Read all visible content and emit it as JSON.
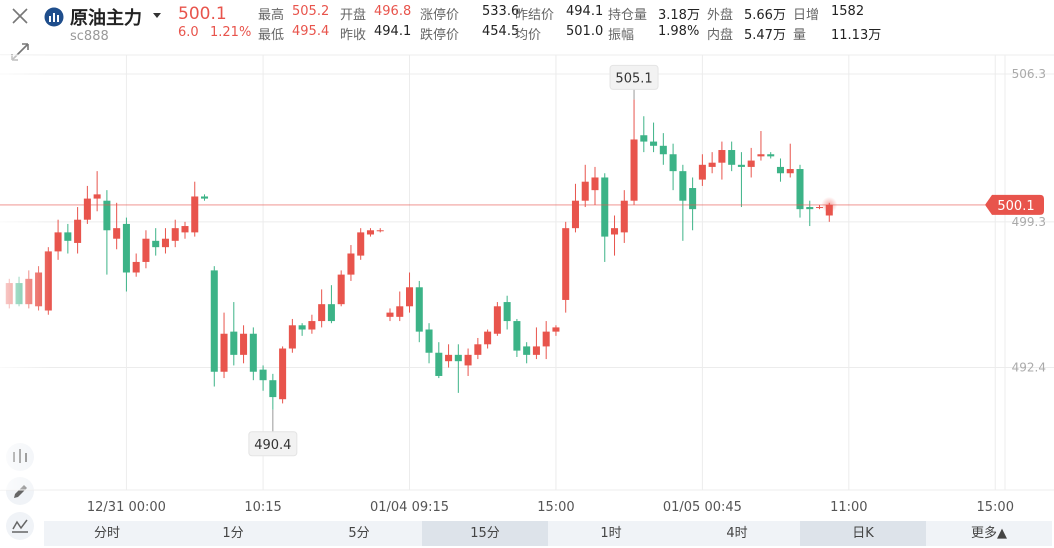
{
  "header": {
    "name": "原油主力",
    "code": "sc888",
    "price": "500.1",
    "change": "6.0",
    "change_pct": "1.21%",
    "stats": [
      [
        {
          "label": "最高",
          "value": "505.2"
        },
        {
          "label": "开盘",
          "value": "496.8"
        },
        {
          "label": "涨停价",
          "value": "533.6"
        },
        {
          "label": "昨结价",
          "value": "494.1"
        },
        {
          "label": "持仓量",
          "value": "3.18万"
        },
        {
          "label": "外盘",
          "value": "5.66万"
        },
        {
          "label": "日增",
          "value": "1582"
        }
      ],
      [
        {
          "label": "最低",
          "value": "495.4"
        },
        {
          "label": "昨收",
          "value": "494.1"
        },
        {
          "label": "跌停价",
          "value": "454.5"
        },
        {
          "label": "均价",
          "value": "501.0"
        },
        {
          "label": "振幅",
          "value": "1.98%"
        },
        {
          "label": "内盘",
          "value": "5.47万"
        },
        {
          "label": "量",
          "value": "11.13万"
        }
      ]
    ]
  },
  "chart_data": {
    "type": "candlestick",
    "up_color": "#e8544c",
    "down_color": "#3cb387",
    "open": [
      495.4,
      496.4,
      495.4,
      495.3,
      495.1,
      497.9,
      498.8,
      498.3,
      499.4,
      500.4,
      500.3,
      498.5,
      499.2,
      496.9,
      497.4,
      498.4,
      498.1,
      498.4,
      498.8,
      498.8,
      500.5,
      497.0,
      492.2,
      494.1,
      493.0,
      494.0,
      492.3,
      491.8,
      490.9,
      493.3,
      494.4,
      494.2,
      494.6,
      495.4,
      495.4,
      496.8,
      497.7,
      498.7,
      498.9,
      494.8,
      494.8,
      495.3,
      496.2,
      494.2,
      493.1,
      492.7,
      493.0,
      492.5,
      493.0,
      493.5,
      494.0,
      495.5,
      494.6,
      493.4,
      493.0,
      493.4,
      494.1,
      495.6,
      499.0,
      500.3,
      500.8,
      501.4,
      498.7,
      498.8,
      500.3,
      503.4,
      503.1,
      502.9,
      502.5,
      501.7,
      500.9,
      501.3,
      501.9,
      502.1,
      502.7,
      502.0,
      501.9,
      502.4,
      502.5,
      501.9,
      501.6,
      501.8,
      500.0,
      500.0,
      499.6
    ],
    "high": [
      496.6,
      496.7,
      497.0,
      497.2,
      498.1,
      499.4,
      499.2,
      500.0,
      501.0,
      501.7,
      500.8,
      500.2,
      499.5,
      497.8,
      498.9,
      499.0,
      499.0,
      499.4,
      499.3,
      501.2,
      500.6,
      497.2,
      495.0,
      495.5,
      494.4,
      494.3,
      492.5,
      492.1,
      493.4,
      494.7,
      494.5,
      494.9,
      496.1,
      496.3,
      497.0,
      498.2,
      499.0,
      499.0,
      499.0,
      495.2,
      496.0,
      496.9,
      496.5,
      494.5,
      493.6,
      493.5,
      493.5,
      493.3,
      493.8,
      494.2,
      495.5,
      495.8,
      494.7,
      493.6,
      494.3,
      494.6,
      494.4,
      499.3,
      501.1,
      502.0,
      501.9,
      501.6,
      499.6,
      500.8,
      505.1,
      504.3,
      504.0,
      503.5,
      503.0,
      502.0,
      501.4,
      502.5,
      502.6,
      503.1,
      503.1,
      502.6,
      502.8,
      503.6,
      502.6,
      502.3,
      503.0,
      502.0,
      500.3,
      500.1,
      500.2
    ],
    "low": [
      495.2,
      495.3,
      495.2,
      495.1,
      494.9,
      497.5,
      497.8,
      497.8,
      499.2,
      499.8,
      496.8,
      498.0,
      496.0,
      496.7,
      497.1,
      497.7,
      497.8,
      498.1,
      498.5,
      498.6,
      500.3,
      491.5,
      491.9,
      492.5,
      492.6,
      491.8,
      491.3,
      490.4,
      490.7,
      493.1,
      493.9,
      494.0,
      494.3,
      494.5,
      495.3,
      496.5,
      497.5,
      498.6,
      498.8,
      494.6,
      494.6,
      495.0,
      493.6,
      492.6,
      491.9,
      492.4,
      491.2,
      492.0,
      492.8,
      493.3,
      493.9,
      494.2,
      492.9,
      492.6,
      492.8,
      492.8,
      493.9,
      495.0,
      498.8,
      500.0,
      500.1,
      497.4,
      497.7,
      498.3,
      500.1,
      502.6,
      502.6,
      502.0,
      500.8,
      498.4,
      498.9,
      501.0,
      501.6,
      501.3,
      501.7,
      500.0,
      501.4,
      502.2,
      502.3,
      501.2,
      501.4,
      499.5,
      499.1,
      499.9,
      499.3
    ],
    "close": [
      496.4,
      495.4,
      496.6,
      496.9,
      497.9,
      498.8,
      498.4,
      499.4,
      500.4,
      500.6,
      498.9,
      499.0,
      496.9,
      497.4,
      498.5,
      498.1,
      498.5,
      499.0,
      499.1,
      500.5,
      500.4,
      492.2,
      494.0,
      493.0,
      494.0,
      492.2,
      491.8,
      491.0,
      493.3,
      494.4,
      494.2,
      494.6,
      495.4,
      494.6,
      496.8,
      497.8,
      498.8,
      498.9,
      498.9,
      495.0,
      495.3,
      496.2,
      494.1,
      493.1,
      492.0,
      493.0,
      492.7,
      493.0,
      493.5,
      494.1,
      495.3,
      494.6,
      493.2,
      493.0,
      493.4,
      494.1,
      494.3,
      499.0,
      500.3,
      501.2,
      501.4,
      498.6,
      499.0,
      500.3,
      503.2,
      503.1,
      502.9,
      502.5,
      501.7,
      500.3,
      499.9,
      502.0,
      502.1,
      502.7,
      502.0,
      501.9,
      502.2,
      502.5,
      502.4,
      501.6,
      501.8,
      499.9,
      499.9,
      500.0,
      500.1
    ],
    "xlim": [
      -0.95,
      102
    ],
    "xticks": [
      {
        "value": 12,
        "label": "12/31 00:00"
      },
      {
        "value": 26,
        "label": "10:15"
      },
      {
        "value": 41,
        "label": "01/04 09:15"
      },
      {
        "value": 56,
        "label": "15:00"
      },
      {
        "value": 71,
        "label": "01/05 00:45"
      },
      {
        "value": 86,
        "label": "11:00"
      },
      {
        "value": 101,
        "label": "15:00"
      }
    ],
    "ylim": [
      486.6,
      507.2
    ],
    "yticks": [
      506.3,
      499.3,
      492.4
    ],
    "grid": true,
    "last_price": 500.1,
    "annotations": [
      {
        "value": 505.1,
        "index": 64
      },
      {
        "value": 490.4,
        "index": 27
      }
    ],
    "tabs": [
      "分时",
      "1分",
      "5分",
      "15分",
      "1时",
      "4时",
      "日K",
      "更多▲"
    ],
    "active_tabs": [
      3,
      6
    ]
  }
}
